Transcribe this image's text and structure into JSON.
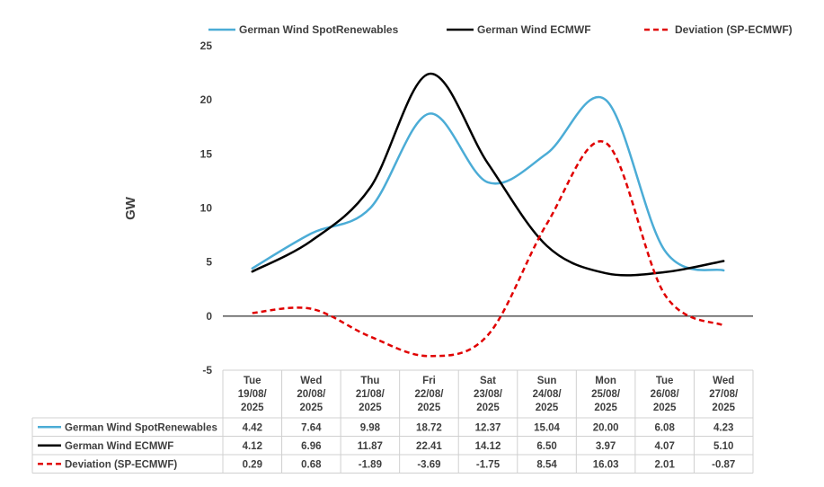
{
  "chart_data": {
    "type": "line",
    "title": "",
    "ylabel": "GW",
    "ylim": [
      -5,
      25
    ],
    "yticks": [
      -5,
      0,
      5,
      10,
      15,
      20,
      25
    ],
    "categories": [
      {
        "day": "Tue",
        "date": "19/08/",
        "year": "2025"
      },
      {
        "day": "Wed",
        "date": "20/08/",
        "year": "2025"
      },
      {
        "day": "Thu",
        "date": "21/08/",
        "year": "2025"
      },
      {
        "day": "Fri",
        "date": "22/08/",
        "year": "2025"
      },
      {
        "day": "Sat",
        "date": "23/08/",
        "year": "2025"
      },
      {
        "day": "Sun",
        "date": "24/08/",
        "year": "2025"
      },
      {
        "day": "Mon",
        "date": "25/08/",
        "year": "2025"
      },
      {
        "day": "Tue",
        "date": "26/08/",
        "year": "2025"
      },
      {
        "day": "Wed",
        "date": "27/08/",
        "year": "2025"
      }
    ],
    "legend_position": "top",
    "series": [
      {
        "name": "German Wind SpotRenewables",
        "color": "#4bacd6",
        "dash": "solid",
        "values": [
          4.42,
          7.64,
          9.98,
          18.72,
          12.37,
          15.04,
          20.0,
          6.08,
          4.23
        ],
        "labels": [
          "4.42",
          "7.64",
          "9.98",
          "18.72",
          "12.37",
          "15.04",
          "20.00",
          "6.08",
          "4.23"
        ]
      },
      {
        "name": "German Wind ECMWF",
        "color": "#000000",
        "dash": "solid",
        "values": [
          4.12,
          6.96,
          11.87,
          22.41,
          14.12,
          6.5,
          3.97,
          4.07,
          5.1
        ],
        "labels": [
          "4.12",
          "6.96",
          "11.87",
          "22.41",
          "14.12",
          "6.50",
          "3.97",
          "4.07",
          "5.10"
        ]
      },
      {
        "name": "Deviation (SP-ECMWF)",
        "color": "#e00000",
        "dash": "dashed",
        "values": [
          0.29,
          0.68,
          -1.89,
          -3.69,
          -1.75,
          8.54,
          16.03,
          2.01,
          -0.87
        ],
        "labels": [
          "0.29",
          "0.68",
          "-1.89",
          "-3.69",
          "-1.75",
          "8.54",
          "16.03",
          "2.01",
          "-0.87"
        ]
      }
    ]
  }
}
